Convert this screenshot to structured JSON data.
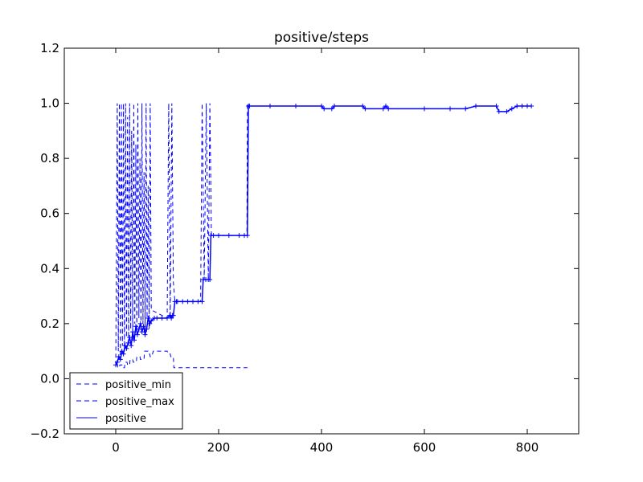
{
  "chart_data": {
    "type": "line",
    "title": "positive/steps",
    "xlabel": "",
    "ylabel": "",
    "xlim": [
      -100,
      900
    ],
    "ylim": [
      -0.2,
      1.2
    ],
    "xticks": [
      0,
      200,
      400,
      600,
      800
    ],
    "xtick_labels": [
      "0",
      "200",
      "400",
      "600",
      "800"
    ],
    "yticks": [
      -0.2,
      0.0,
      0.2,
      0.4,
      0.6,
      0.8,
      1.0,
      1.2
    ],
    "ytick_labels": [
      "−0.2",
      "0.0",
      "0.2",
      "0.4",
      "0.6",
      "0.8",
      "1.0",
      "1.2"
    ],
    "grid": false,
    "legend_position": "lower-left",
    "color": "#0000ff",
    "series": [
      {
        "name": "positive_min",
        "style": "dashed",
        "x": [
          0,
          3,
          4,
          7,
          8,
          12,
          13,
          17,
          18,
          22,
          23,
          27,
          28,
          33,
          34,
          40,
          41,
          47,
          48,
          55,
          56,
          63,
          64,
          66,
          67,
          70,
          73,
          78,
          80,
          100,
          102,
          106,
          107,
          110,
          112,
          113,
          115,
          120,
          150,
          168,
          170,
          172,
          178,
          180,
          183,
          185,
          200,
          220,
          250,
          255,
          256
        ],
        "y": [
          0.05,
          0.05,
          0.04,
          0.04,
          0.05,
          0.05,
          0.04,
          0.04,
          0.06,
          0.06,
          0.05,
          0.05,
          0.07,
          0.07,
          0.06,
          0.06,
          0.08,
          0.08,
          0.07,
          0.07,
          0.1,
          0.1,
          0.09,
          0.09,
          0.08,
          0.08,
          0.1,
          0.1,
          0.1,
          0.1,
          0.09,
          0.09,
          0.08,
          0.08,
          0.08,
          0.04,
          0.04,
          0.04,
          0.04,
          0.04,
          0.04,
          0.04,
          0.04,
          0.04,
          0.04,
          0.04,
          0.04,
          0.04,
          0.04,
          0.04,
          0.04
        ]
      },
      {
        "name": "positive_max",
        "style": "dashed",
        "x": [
          0,
          3,
          5,
          7,
          9,
          11,
          13,
          15,
          17,
          19,
          21,
          23,
          25,
          27,
          29,
          31,
          33,
          35,
          37,
          39,
          41,
          43,
          45,
          47,
          49,
          51,
          53,
          55,
          57,
          59,
          61,
          63,
          65,
          67,
          69,
          100,
          103,
          106,
          109,
          112,
          115,
          165,
          168,
          172,
          176,
          180,
          183,
          186,
          255,
          256,
          258
        ],
        "y": [
          0.05,
          1.0,
          0.1,
          1.0,
          0.08,
          1.0,
          0.12,
          1.0,
          0.1,
          1.0,
          0.15,
          0.95,
          0.12,
          1.0,
          0.18,
          0.9,
          0.14,
          1.0,
          0.2,
          0.85,
          0.16,
          1.0,
          0.22,
          0.8,
          0.18,
          1.0,
          0.2,
          0.75,
          0.17,
          1.0,
          0.22,
          0.7,
          0.18,
          1.0,
          0.25,
          0.22,
          1.0,
          0.22,
          1.0,
          0.35,
          0.28,
          0.28,
          1.0,
          0.36,
          1.0,
          0.36,
          1.0,
          0.52,
          0.52,
          1.0,
          0.99
        ]
      },
      {
        "name": "positive",
        "style": "solid",
        "x": [
          0,
          3,
          6,
          9,
          12,
          15,
          18,
          21,
          24,
          27,
          30,
          33,
          36,
          39,
          42,
          45,
          48,
          51,
          54,
          57,
          60,
          63,
          66,
          69,
          75,
          80,
          90,
          100,
          105,
          108,
          110,
          112,
          115,
          118,
          120,
          130,
          140,
          150,
          160,
          168,
          170,
          175,
          180,
          183,
          185,
          190,
          200,
          220,
          240,
          250,
          256,
          258,
          260,
          300,
          350,
          400,
          405,
          420,
          425,
          480,
          485,
          520,
          525,
          530,
          600,
          650,
          680,
          700,
          740,
          745,
          760,
          770,
          780,
          790,
          800,
          808
        ],
        "y": [
          0.05,
          0.06,
          0.08,
          0.07,
          0.1,
          0.09,
          0.12,
          0.11,
          0.13,
          0.15,
          0.12,
          0.17,
          0.14,
          0.19,
          0.16,
          0.18,
          0.2,
          0.17,
          0.19,
          0.16,
          0.18,
          0.22,
          0.2,
          0.21,
          0.22,
          0.22,
          0.22,
          0.22,
          0.23,
          0.22,
          0.23,
          0.23,
          0.28,
          0.28,
          0.28,
          0.28,
          0.28,
          0.28,
          0.28,
          0.28,
          0.36,
          0.36,
          0.36,
          0.36,
          0.52,
          0.52,
          0.52,
          0.52,
          0.52,
          0.52,
          0.52,
          0.99,
          0.99,
          0.99,
          0.99,
          0.99,
          0.98,
          0.98,
          0.99,
          0.99,
          0.98,
          0.98,
          0.99,
          0.98,
          0.98,
          0.98,
          0.98,
          0.99,
          0.99,
          0.97,
          0.97,
          0.98,
          0.99,
          0.99,
          0.99,
          0.99
        ]
      }
    ]
  }
}
